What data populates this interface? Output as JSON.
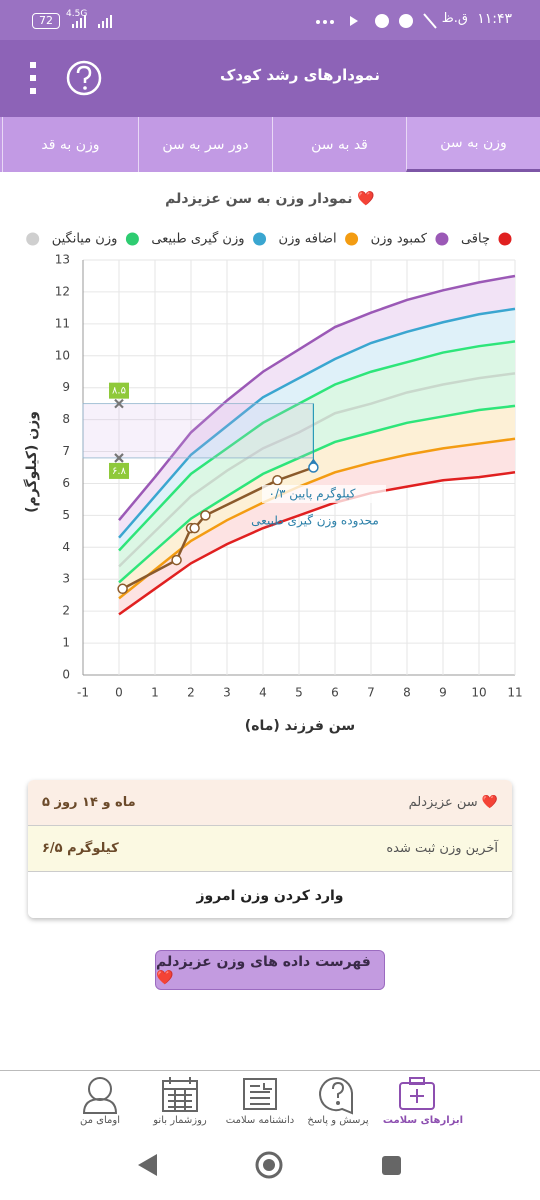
{
  "status_bar": {
    "time": "۱۱:۴۳",
    "period": "ق.ظ",
    "battery": "72",
    "network": "4.5G"
  },
  "header": {
    "title": "نمودارهای رشد کودک"
  },
  "tabs": [
    "وزن به سن",
    "قد به سن",
    "دور سر به سن",
    "وزن به قد"
  ],
  "chart_data": {
    "type": "line",
    "title": "نمودار وزن به سن عزیزدلم ❤️",
    "x_label": "سن فرزند (ماه)",
    "y_label": "وزن (کیلوگرم)",
    "xlim": [
      -1,
      11
    ],
    "xticks": [
      -1,
      0,
      1,
      2,
      3,
      4,
      5,
      6,
      7,
      8,
      9,
      10,
      11
    ],
    "ylim": [
      0,
      13
    ],
    "yticks": [
      0,
      1,
      2,
      3,
      4,
      5,
      6,
      7,
      8,
      9,
      10,
      11,
      12,
      13
    ],
    "grid": true,
    "legend": [
      {
        "color": "#e02020"
      },
      {
        "name": "چاقی",
        "color": "#9b59b6"
      },
      {
        "name": "کمبود وزن",
        "color": "#f39c12"
      },
      {
        "name": "اضافه وزن",
        "color": "#3aa6d0"
      },
      {
        "name": "وزن گیری طبیعی",
        "color": "#2ecc71"
      },
      {
        "name": "وزن میانگین",
        "color": "#cfcfcf"
      }
    ],
    "x": [
      0,
      1,
      2,
      3,
      4,
      5,
      6,
      7,
      8,
      9,
      10,
      11
    ],
    "series": [
      {
        "color": "#e02020",
        "values": [
          1.9,
          2.7,
          3.5,
          4.1,
          4.6,
          5.0,
          5.4,
          5.7,
          5.9,
          6.1,
          6.2,
          6.35
        ]
      },
      {
        "color": "#f39c12",
        "fill": "#fde3e3",
        "values": [
          2.4,
          3.3,
          4.2,
          4.85,
          5.4,
          5.9,
          6.35,
          6.65,
          6.9,
          7.1,
          7.25,
          7.4
        ]
      },
      {
        "color": "#2ee57a",
        "fill": "#fdf0d6",
        "values": [
          2.9,
          3.9,
          4.9,
          5.6,
          6.3,
          6.8,
          7.3,
          7.6,
          7.9,
          8.1,
          8.3,
          8.43
        ]
      },
      {
        "color": "#c9d8cc",
        "fill": "#dcf7e5",
        "values": [
          3.4,
          4.5,
          5.6,
          6.4,
          7.1,
          7.6,
          8.2,
          8.5,
          8.85,
          9.1,
          9.3,
          9.45
        ]
      },
      {
        "color": "#2ee57a",
        "fill": "#dcf7e5",
        "values": [
          3.9,
          5.1,
          6.3,
          7.1,
          7.9,
          8.5,
          9.1,
          9.5,
          9.8,
          10.1,
          10.3,
          10.45
        ]
      },
      {
        "color": "#3aa6d0",
        "fill": "#dff1f9",
        "values": [
          4.3,
          5.6,
          6.9,
          7.8,
          8.7,
          9.3,
          9.9,
          10.4,
          10.75,
          11.05,
          11.3,
          11.47
        ]
      },
      {
        "color": "#9b59b6",
        "fill": "#f2e3f6",
        "values": [
          4.85,
          6.2,
          7.6,
          8.6,
          9.5,
          10.2,
          10.9,
          11.35,
          11.75,
          12.05,
          12.3,
          12.5
        ]
      }
    ],
    "measurements": {
      "color": "#8b5a2b",
      "x": [
        0.1,
        1.6,
        2.0,
        2.1,
        2.4,
        4.4,
        5.4
      ],
      "values": [
        2.7,
        3.6,
        4.6,
        4.6,
        5.0,
        6.1,
        6.5
      ]
    },
    "normal_range": {
      "high": {
        "value": 8.5,
        "label": "۸.۵"
      },
      "low": {
        "value": 6.8,
        "label": "۶.۸"
      }
    },
    "annotations": [
      "۰/۳ کیلوگرم پایین",
      "محدوده وزن گیری طبیعی"
    ]
  },
  "info": {
    "age_label": "سن عزیزدلم ❤️",
    "age": "۵ ماه و ۱۴ روز",
    "weight_label": "آخرین وزن ثبت شده",
    "weight": "۶/۵ کیلوگرم",
    "action": "وارد کردن وزن امروز"
  },
  "list_button": "فهرست داده های وزن عزیزدلم ❤️",
  "bottom_nav": [
    "ابزارهای سلامت",
    "پرسش و پاسخ",
    "دانشنامه سلامت",
    "روزشمار بانو",
    "اومای من"
  ]
}
